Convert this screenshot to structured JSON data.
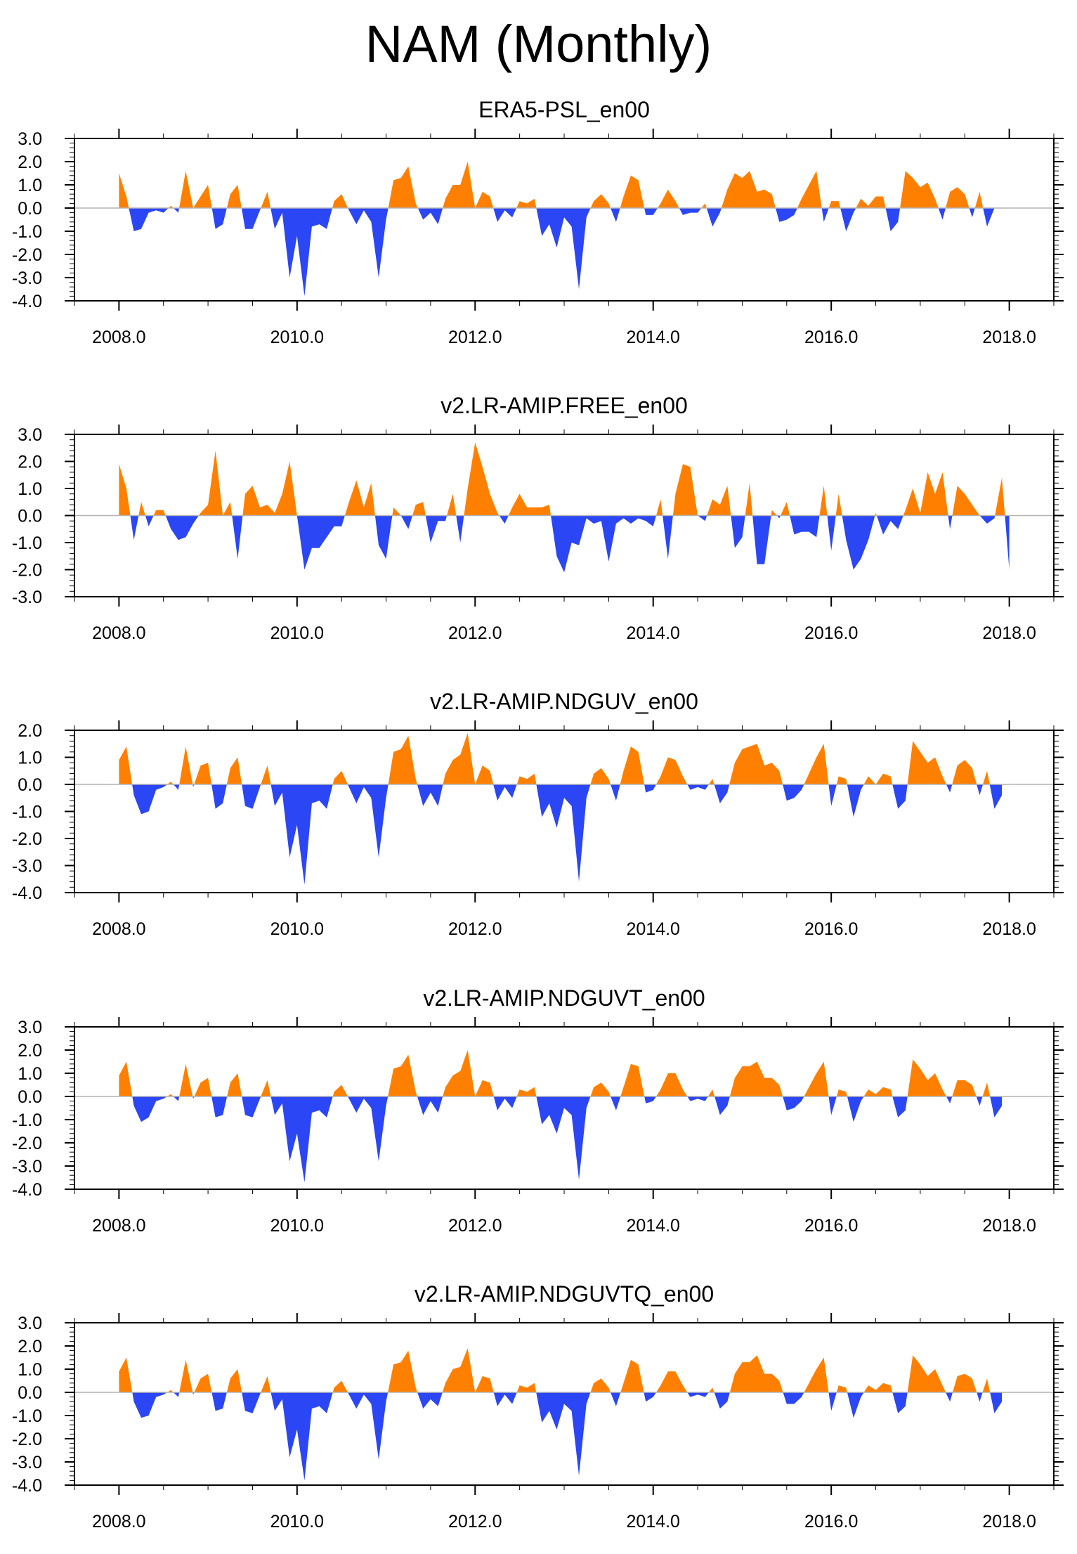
{
  "figure": {
    "title": "NAM (Monthly)"
  },
  "colors": {
    "positive": "#ff8000",
    "negative": "#2b46f5",
    "axis": "#000000",
    "zero_line": "#b4b4b4"
  },
  "chart_data": [
    {
      "type": "area",
      "title": "ERA5-PSL_en00",
      "x_start": 2008.0,
      "x_step": 0.0833333,
      "xlim": [
        2007.5,
        2018.5
      ],
      "ylim": [
        -4.0,
        3.0
      ],
      "x_ticks": [
        2008.0,
        2010.0,
        2012.0,
        2014.0,
        2016.0,
        2018.0
      ],
      "x_tick_labels": [
        "2008.0",
        "2010.0",
        "2012.0",
        "2014.0",
        "2016.0",
        "2018.0"
      ],
      "y_ticks": [
        3.0,
        2.0,
        1.0,
        0.0,
        -1.0,
        -2.0,
        -3.0,
        -4.0
      ],
      "y_tick_labels": [
        "3.0",
        "2.0",
        "1.0",
        "0.0",
        "-1.0",
        "-2.0",
        "-3.0",
        "-4.0"
      ],
      "values": [
        1.5,
        0.5,
        -1.0,
        -0.9,
        -0.2,
        -0.1,
        -0.2,
        0.1,
        -0.2,
        1.6,
        0.0,
        0.5,
        1.0,
        -0.9,
        -0.7,
        0.6,
        1.0,
        -0.9,
        -0.9,
        -0.1,
        0.7,
        -0.9,
        -0.2,
        -3.0,
        -1.2,
        -3.8,
        -0.8,
        -0.7,
        -0.9,
        0.3,
        0.6,
        -0.1,
        -0.7,
        -0.1,
        -0.6,
        -3.0,
        -0.5,
        1.2,
        1.3,
        1.8,
        0.2,
        -0.5,
        -0.2,
        -0.7,
        0.4,
        1.0,
        1.0,
        2.0,
        0.0,
        0.7,
        0.5,
        -0.6,
        -0.1,
        -0.4,
        0.3,
        0.2,
        0.4,
        -1.2,
        -0.7,
        -1.7,
        -0.4,
        -0.8,
        -3.5,
        -0.4,
        0.3,
        0.6,
        0.2,
        -0.6,
        0.5,
        1.4,
        1.2,
        -0.3,
        -0.3,
        0.2,
        0.8,
        0.3,
        -0.3,
        -0.2,
        -0.2,
        0.2,
        -0.8,
        -0.2,
        0.8,
        1.5,
        1.3,
        1.6,
        0.7,
        0.8,
        0.6,
        -0.6,
        -0.5,
        -0.3,
        0.4,
        1.0,
        1.6,
        -0.6,
        0.3,
        0.3,
        -1.0,
        -0.2,
        0.4,
        0.1,
        0.5,
        0.5,
        -1.0,
        -0.6,
        1.6,
        1.3,
        0.9,
        1.1,
        0.4,
        -0.5,
        0.7,
        0.9,
        0.6,
        -0.4,
        0.7,
        -0.8,
        0.0,
        0.0
      ]
    },
    {
      "type": "area",
      "title": "v2.LR-AMIP.FREE_en00",
      "x_start": 2008.0,
      "x_step": 0.0833333,
      "xlim": [
        2007.5,
        2018.5
      ],
      "ylim": [
        -3.0,
        3.0
      ],
      "x_ticks": [
        2008.0,
        2010.0,
        2012.0,
        2014.0,
        2016.0,
        2018.0
      ],
      "x_tick_labels": [
        "2008.0",
        "2010.0",
        "2012.0",
        "2014.0",
        "2016.0",
        "2018.0"
      ],
      "y_ticks": [
        3.0,
        2.0,
        1.0,
        0.0,
        -1.0,
        -2.0,
        -3.0
      ],
      "y_tick_labels": [
        "3.0",
        "2.0",
        "1.0",
        "0.0",
        "-1.0",
        "-2.0",
        "-3.0"
      ],
      "values": [
        1.9,
        1.0,
        -0.9,
        0.5,
        -0.4,
        0.2,
        0.2,
        -0.5,
        -0.9,
        -0.8,
        -0.3,
        0.1,
        0.4,
        2.4,
        0.0,
        0.5,
        -1.6,
        0.8,
        1.1,
        0.3,
        0.4,
        0.1,
        0.8,
        2.0,
        0.0,
        -2.0,
        -1.2,
        -1.2,
        -0.8,
        -0.4,
        -0.4,
        0.5,
        1.3,
        0.3,
        1.2,
        -1.1,
        -1.6,
        0.3,
        0.0,
        -0.5,
        0.4,
        0.5,
        -1.0,
        -0.2,
        -0.2,
        0.8,
        -1.0,
        1.0,
        2.7,
        1.8,
        0.8,
        0.1,
        -0.3,
        0.3,
        0.8,
        0.3,
        0.3,
        0.3,
        0.4,
        -1.5,
        -2.1,
        -1.0,
        -1.1,
        -0.1,
        -0.3,
        -0.2,
        -1.7,
        -0.3,
        -0.1,
        -0.3,
        -0.1,
        -0.2,
        -0.4,
        0.6,
        -1.6,
        0.8,
        1.9,
        1.8,
        0.0,
        -0.2,
        0.6,
        0.4,
        1.1,
        -1.2,
        -0.8,
        1.2,
        -1.8,
        -1.8,
        0.2,
        -0.1,
        0.5,
        -0.7,
        -0.6,
        -0.6,
        -0.8,
        1.1,
        -1.3,
        0.8,
        -0.9,
        -2.0,
        -1.6,
        -0.9,
        0.1,
        -0.7,
        -0.2,
        -0.5,
        0.2,
        1.0,
        0.1,
        1.6,
        0.8,
        1.6,
        -0.5,
        1.1,
        0.8,
        0.4,
        0.0,
        -0.3,
        -0.1,
        1.4,
        -2.0
      ]
    },
    {
      "type": "area",
      "title": "v2.LR-AMIP.NDGUV_en00",
      "x_start": 2008.0,
      "x_step": 0.0833333,
      "xlim": [
        2007.5,
        2018.5
      ],
      "ylim": [
        -4.0,
        2.0
      ],
      "x_ticks": [
        2008.0,
        2010.0,
        2012.0,
        2014.0,
        2016.0,
        2018.0
      ],
      "x_tick_labels": [
        "2008.0",
        "2010.0",
        "2012.0",
        "2014.0",
        "2016.0",
        "2018.0"
      ],
      "y_ticks": [
        2.0,
        1.0,
        0.0,
        -1.0,
        -2.0,
        -3.0,
        -4.0
      ],
      "y_tick_labels": [
        "2.0",
        "1.0",
        "0.0",
        "-1.0",
        "-2.0",
        "-3.0",
        "-4.0"
      ],
      "values": [
        0.9,
        1.4,
        -0.4,
        -1.1,
        -1.0,
        -0.2,
        -0.1,
        0.1,
        -0.2,
        1.4,
        -0.1,
        0.7,
        0.8,
        -0.9,
        -0.7,
        0.6,
        1.0,
        -0.8,
        -0.9,
        -0.1,
        0.7,
        -0.8,
        -0.3,
        -2.7,
        -1.5,
        -3.7,
        -0.7,
        -0.6,
        -0.9,
        0.2,
        0.5,
        -0.1,
        -0.7,
        -0.1,
        -0.5,
        -2.7,
        -0.5,
        1.2,
        1.3,
        1.8,
        0.2,
        -0.8,
        -0.3,
        -0.8,
        0.4,
        0.9,
        1.1,
        1.9,
        0.0,
        0.7,
        0.5,
        -0.6,
        -0.1,
        -0.5,
        0.3,
        0.2,
        0.4,
        -1.2,
        -0.7,
        -1.6,
        -0.5,
        -0.8,
        -3.6,
        -0.5,
        0.4,
        0.6,
        0.2,
        -0.6,
        0.5,
        1.4,
        1.2,
        -0.3,
        -0.2,
        0.3,
        1.0,
        0.9,
        0.3,
        -0.2,
        -0.1,
        -0.2,
        0.2,
        -0.7,
        -0.3,
        0.8,
        1.3,
        1.4,
        1.5,
        0.7,
        0.8,
        0.5,
        -0.6,
        -0.5,
        -0.2,
        0.4,
        1.0,
        1.5,
        -0.8,
        0.3,
        0.2,
        -1.2,
        -0.2,
        0.3,
        0.0,
        0.4,
        0.3,
        -0.9,
        -0.6,
        1.6,
        1.2,
        0.8,
        1.0,
        0.3,
        -0.3,
        0.7,
        0.9,
        0.6,
        -0.4,
        0.5,
        -0.9,
        -0.4
      ]
    },
    {
      "type": "area",
      "title": "v2.LR-AMIP.NDGUVT_en00",
      "x_start": 2008.0,
      "x_step": 0.0833333,
      "xlim": [
        2007.5,
        2018.5
      ],
      "ylim": [
        -4.0,
        3.0
      ],
      "x_ticks": [
        2008.0,
        2010.0,
        2012.0,
        2014.0,
        2016.0,
        2018.0
      ],
      "x_tick_labels": [
        "2008.0",
        "2010.0",
        "2012.0",
        "2014.0",
        "2016.0",
        "2018.0"
      ],
      "y_ticks": [
        3.0,
        2.0,
        1.0,
        0.0,
        -1.0,
        -2.0,
        -3.0,
        -4.0
      ],
      "y_tick_labels": [
        "3.0",
        "2.0",
        "1.0",
        "0.0",
        "-1.0",
        "-2.0",
        "-3.0",
        "-4.0"
      ],
      "values": [
        0.9,
        1.5,
        -0.4,
        -1.1,
        -0.9,
        -0.2,
        -0.1,
        0.1,
        -0.2,
        1.4,
        -0.1,
        0.6,
        0.8,
        -0.9,
        -0.8,
        0.6,
        1.0,
        -0.8,
        -0.9,
        -0.1,
        0.7,
        -0.8,
        -0.3,
        -2.8,
        -1.6,
        -3.7,
        -0.7,
        -0.6,
        -0.9,
        0.2,
        0.5,
        -0.1,
        -0.7,
        -0.1,
        -0.5,
        -2.8,
        -0.4,
        1.2,
        1.3,
        1.8,
        0.2,
        -0.8,
        -0.2,
        -0.7,
        0.4,
        0.9,
        1.1,
        2.0,
        0.0,
        0.7,
        0.6,
        -0.6,
        -0.1,
        -0.5,
        0.3,
        0.2,
        0.4,
        -1.2,
        -0.8,
        -1.6,
        -0.5,
        -0.8,
        -3.6,
        -0.5,
        0.4,
        0.6,
        0.2,
        -0.6,
        0.4,
        1.4,
        1.3,
        -0.3,
        -0.2,
        0.3,
        1.0,
        1.0,
        0.3,
        -0.2,
        -0.1,
        -0.2,
        0.3,
        -0.8,
        -0.4,
        0.8,
        1.3,
        1.3,
        1.5,
        0.8,
        0.8,
        0.5,
        -0.6,
        -0.5,
        -0.2,
        0.4,
        1.0,
        1.5,
        -0.8,
        0.3,
        0.2,
        -1.1,
        -0.2,
        0.3,
        0.1,
        0.4,
        0.3,
        -0.9,
        -0.6,
        1.6,
        1.2,
        0.7,
        1.0,
        0.3,
        -0.3,
        0.7,
        0.7,
        0.5,
        -0.4,
        0.6,
        -0.9,
        -0.4
      ]
    },
    {
      "type": "area",
      "title": "v2.LR-AMIP.NDGUVTQ_en00",
      "x_start": 2008.0,
      "x_step": 0.0833333,
      "xlim": [
        2007.5,
        2018.5
      ],
      "ylim": [
        -4.0,
        3.0
      ],
      "x_ticks": [
        2008.0,
        2010.0,
        2012.0,
        2014.0,
        2016.0,
        2018.0
      ],
      "x_tick_labels": [
        "2008.0",
        "2010.0",
        "2012.0",
        "2014.0",
        "2016.0",
        "2018.0"
      ],
      "y_ticks": [
        3.0,
        2.0,
        1.0,
        0.0,
        -1.0,
        -2.0,
        -3.0,
        -4.0
      ],
      "y_tick_labels": [
        "3.0",
        "2.0",
        "1.0",
        "0.0",
        "-1.0",
        "-2.0",
        "-3.0",
        "-4.0"
      ],
      "values": [
        0.9,
        1.5,
        -0.4,
        -1.1,
        -1.0,
        -0.2,
        -0.1,
        0.1,
        -0.2,
        1.4,
        -0.1,
        0.6,
        0.8,
        -0.8,
        -0.7,
        0.6,
        1.0,
        -0.8,
        -0.9,
        -0.1,
        0.7,
        -0.8,
        -0.3,
        -2.8,
        -1.6,
        -3.8,
        -0.7,
        -0.6,
        -0.9,
        0.2,
        0.5,
        -0.1,
        -0.7,
        -0.1,
        -0.5,
        -2.9,
        -0.4,
        1.2,
        1.3,
        1.8,
        0.2,
        -0.7,
        -0.3,
        -0.6,
        0.4,
        1.0,
        1.1,
        1.9,
        0.0,
        0.7,
        0.6,
        -0.6,
        -0.1,
        -0.5,
        0.3,
        0.2,
        0.4,
        -1.3,
        -0.8,
        -1.6,
        -0.5,
        -0.8,
        -3.6,
        -0.5,
        0.4,
        0.6,
        0.2,
        -0.6,
        0.4,
        1.4,
        1.2,
        -0.4,
        -0.2,
        0.3,
        0.9,
        0.9,
        0.3,
        -0.2,
        -0.1,
        -0.2,
        0.2,
        -0.7,
        -0.4,
        0.8,
        1.3,
        1.3,
        1.6,
        0.8,
        0.8,
        0.5,
        -0.5,
        -0.5,
        -0.2,
        0.4,
        1.0,
        1.5,
        -0.8,
        0.3,
        0.2,
        -1.1,
        -0.2,
        0.3,
        0.1,
        0.4,
        0.3,
        -0.9,
        -0.6,
        1.6,
        1.2,
        0.7,
        1.0,
        0.3,
        -0.4,
        0.7,
        0.8,
        0.6,
        -0.4,
        0.6,
        -0.9,
        -0.4
      ]
    }
  ]
}
